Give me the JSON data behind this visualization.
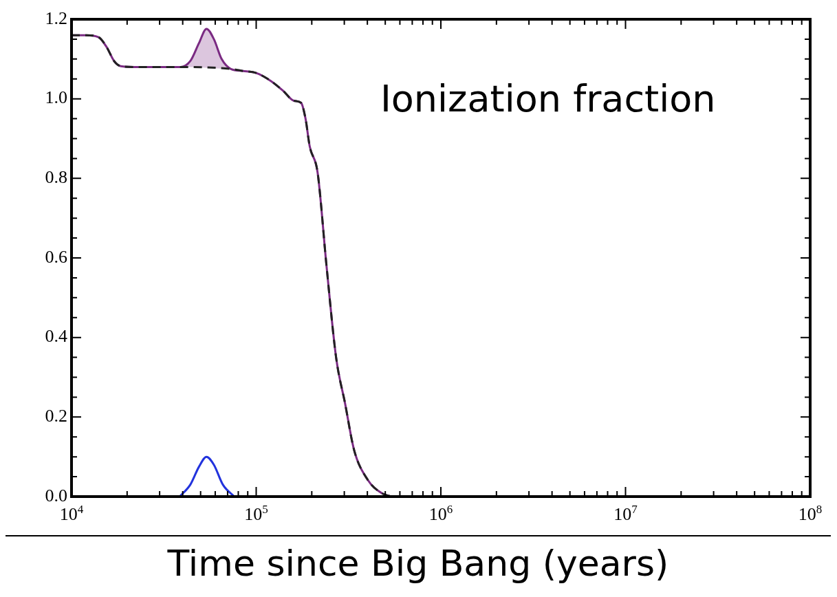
{
  "chart_data": {
    "type": "line",
    "title": "Ionization fraction",
    "xlabel": "Time since Big Bang (years)",
    "xlim": [
      10000,
      100000000
    ],
    "ylim": [
      0,
      1.2
    ],
    "log": "x",
    "grid": false,
    "legend": false,
    "marker": "none",
    "xticks": [
      {
        "value": 10000,
        "label": "10$^{4}$"
      },
      {
        "value": 20000,
        "label": null
      },
      {
        "value": 30000,
        "label": null
      },
      {
        "value": 40000,
        "label": null
      },
      {
        "value": 50000,
        "label": null
      },
      {
        "value": 60000,
        "label": null
      },
      {
        "value": 70000,
        "label": null
      },
      {
        "value": 80000,
        "label": null
      },
      {
        "value": 90000,
        "label": null
      },
      {
        "value": 100000,
        "label": "10$^{5}$"
      },
      {
        "value": 200000,
        "label": null
      },
      {
        "value": 300000,
        "label": null
      },
      {
        "value": 400000,
        "label": null
      },
      {
        "value": 500000,
        "label": null
      },
      {
        "value": 600000,
        "label": null
      },
      {
        "value": 700000,
        "label": null
      },
      {
        "value": 800000,
        "label": null
      },
      {
        "value": 900000,
        "label": null
      },
      {
        "value": 1000000,
        "label": "10$^{6}$"
      },
      {
        "value": 2000000,
        "label": null
      },
      {
        "value": 3000000,
        "label": null
      },
      {
        "value": 4000000,
        "label": null
      },
      {
        "value": 5000000,
        "label": null
      },
      {
        "value": 6000000,
        "label": null
      },
      {
        "value": 7000000,
        "label": null
      },
      {
        "value": 8000000,
        "label": null
      },
      {
        "value": 9000000,
        "label": null
      },
      {
        "value": 10000000,
        "label": "10$^{7}$"
      },
      {
        "value": 20000000,
        "label": null
      },
      {
        "value": 30000000,
        "label": null
      },
      {
        "value": 40000000,
        "label": null
      },
      {
        "value": 50000000,
        "label": null
      },
      {
        "value": 60000000,
        "label": null
      },
      {
        "value": 70000000,
        "label": null
      },
      {
        "value": 80000000,
        "label": null
      },
      {
        "value": 90000000,
        "label": null
      },
      {
        "value": 100000000,
        "label": "10$^{8}$"
      }
    ],
    "yticks": [
      {
        "value": 0,
        "label": "0.0"
      },
      {
        "value": 0.05,
        "label": null
      },
      {
        "value": 0.1,
        "label": null
      },
      {
        "value": 0.15,
        "label": null
      },
      {
        "value": 0.2,
        "label": "0.2"
      },
      {
        "value": 0.25,
        "label": null
      },
      {
        "value": 0.3,
        "label": null
      },
      {
        "value": 0.35,
        "label": null
      },
      {
        "value": 0.4,
        "label": "0.4"
      },
      {
        "value": 0.45,
        "label": null
      },
      {
        "value": 0.5,
        "label": null
      },
      {
        "value": 0.55,
        "label": null
      },
      {
        "value": 0.6,
        "label": "0.6"
      },
      {
        "value": 0.65,
        "label": null
      },
      {
        "value": 0.7,
        "label": null
      },
      {
        "value": 0.75,
        "label": null
      },
      {
        "value": 0.8,
        "label": "0.8"
      },
      {
        "value": 0.85,
        "label": null
      },
      {
        "value": 0.9,
        "label": null
      },
      {
        "value": 0.95,
        "label": null
      },
      {
        "value": 1.0,
        "label": "1.0"
      },
      {
        "value": 1.05,
        "label": null
      },
      {
        "value": 1.1,
        "label": null
      },
      {
        "value": 1.15,
        "label": null
      },
      {
        "value": 1.2,
        "label": "1.2"
      }
    ],
    "series": [
      {
        "color": "#7a2a82",
        "line_style": "solid",
        "x": [
          10000,
          12000,
          14000,
          15500,
          17000,
          18500,
          22000,
          30000,
          39000,
          44000,
          49000,
          53800,
          59000,
          65000,
          73000,
          85000,
          100000,
          120000,
          140000,
          160000,
          175000,
          185000,
          195000,
          215000,
          240000,
          271000,
          303000,
          339000,
          402000,
          477000,
          540000
        ],
        "values": [
          1.16,
          1.16,
          1.155,
          1.13,
          1.095,
          1.082,
          1.08,
          1.08,
          1.08,
          1.095,
          1.14,
          1.176,
          1.15,
          1.1,
          1.075,
          1.07,
          1.065,
          1.045,
          1.02,
          0.995,
          0.99,
          0.95,
          0.88,
          0.815,
          0.583,
          0.349,
          0.234,
          0.117,
          0.042,
          0.009,
          0
        ],
        "lower": [
          null,
          null,
          null,
          null,
          null,
          null,
          null,
          null,
          1.08,
          1.08,
          1.079,
          1.078,
          1.077,
          1.076,
          1.075,
          null,
          null,
          null,
          null,
          null,
          null,
          null,
          null,
          null,
          null,
          null,
          null,
          null,
          null,
          null,
          null
        ],
        "upper": [
          null,
          null,
          null,
          null,
          null,
          null,
          null,
          null,
          1.08,
          1.095,
          1.14,
          1.176,
          1.15,
          1.1,
          1.075,
          null,
          null,
          null,
          null,
          null,
          null,
          null,
          null,
          null,
          null,
          null,
          null,
          null,
          null,
          null,
          null
        ]
      },
      {
        "color": "#222222",
        "line_style": "dashed",
        "x": [
          10000,
          12000,
          14000,
          15500,
          17000,
          18500,
          22000,
          30000,
          39000,
          73000,
          85000,
          100000,
          120000,
          140000,
          160000,
          175000,
          185000,
          195000,
          215000,
          240000,
          271000,
          303000,
          339000,
          402000,
          477000,
          540000
        ],
        "values": [
          1.16,
          1.16,
          1.155,
          1.13,
          1.095,
          1.082,
          1.08,
          1.08,
          1.08,
          1.075,
          1.07,
          1.065,
          1.045,
          1.02,
          0.995,
          0.99,
          0.95,
          0.88,
          0.815,
          0.583,
          0.349,
          0.234,
          0.117,
          0.042,
          0.009,
          0
        ]
      },
      {
        "color": "#2233dd",
        "line_style": "solid",
        "x": [
          38500,
          44000,
          49000,
          53800,
          59000,
          66000,
          76000
        ],
        "values": [
          0,
          0.03,
          0.075,
          0.1,
          0.08,
          0.03,
          0
        ]
      }
    ]
  }
}
